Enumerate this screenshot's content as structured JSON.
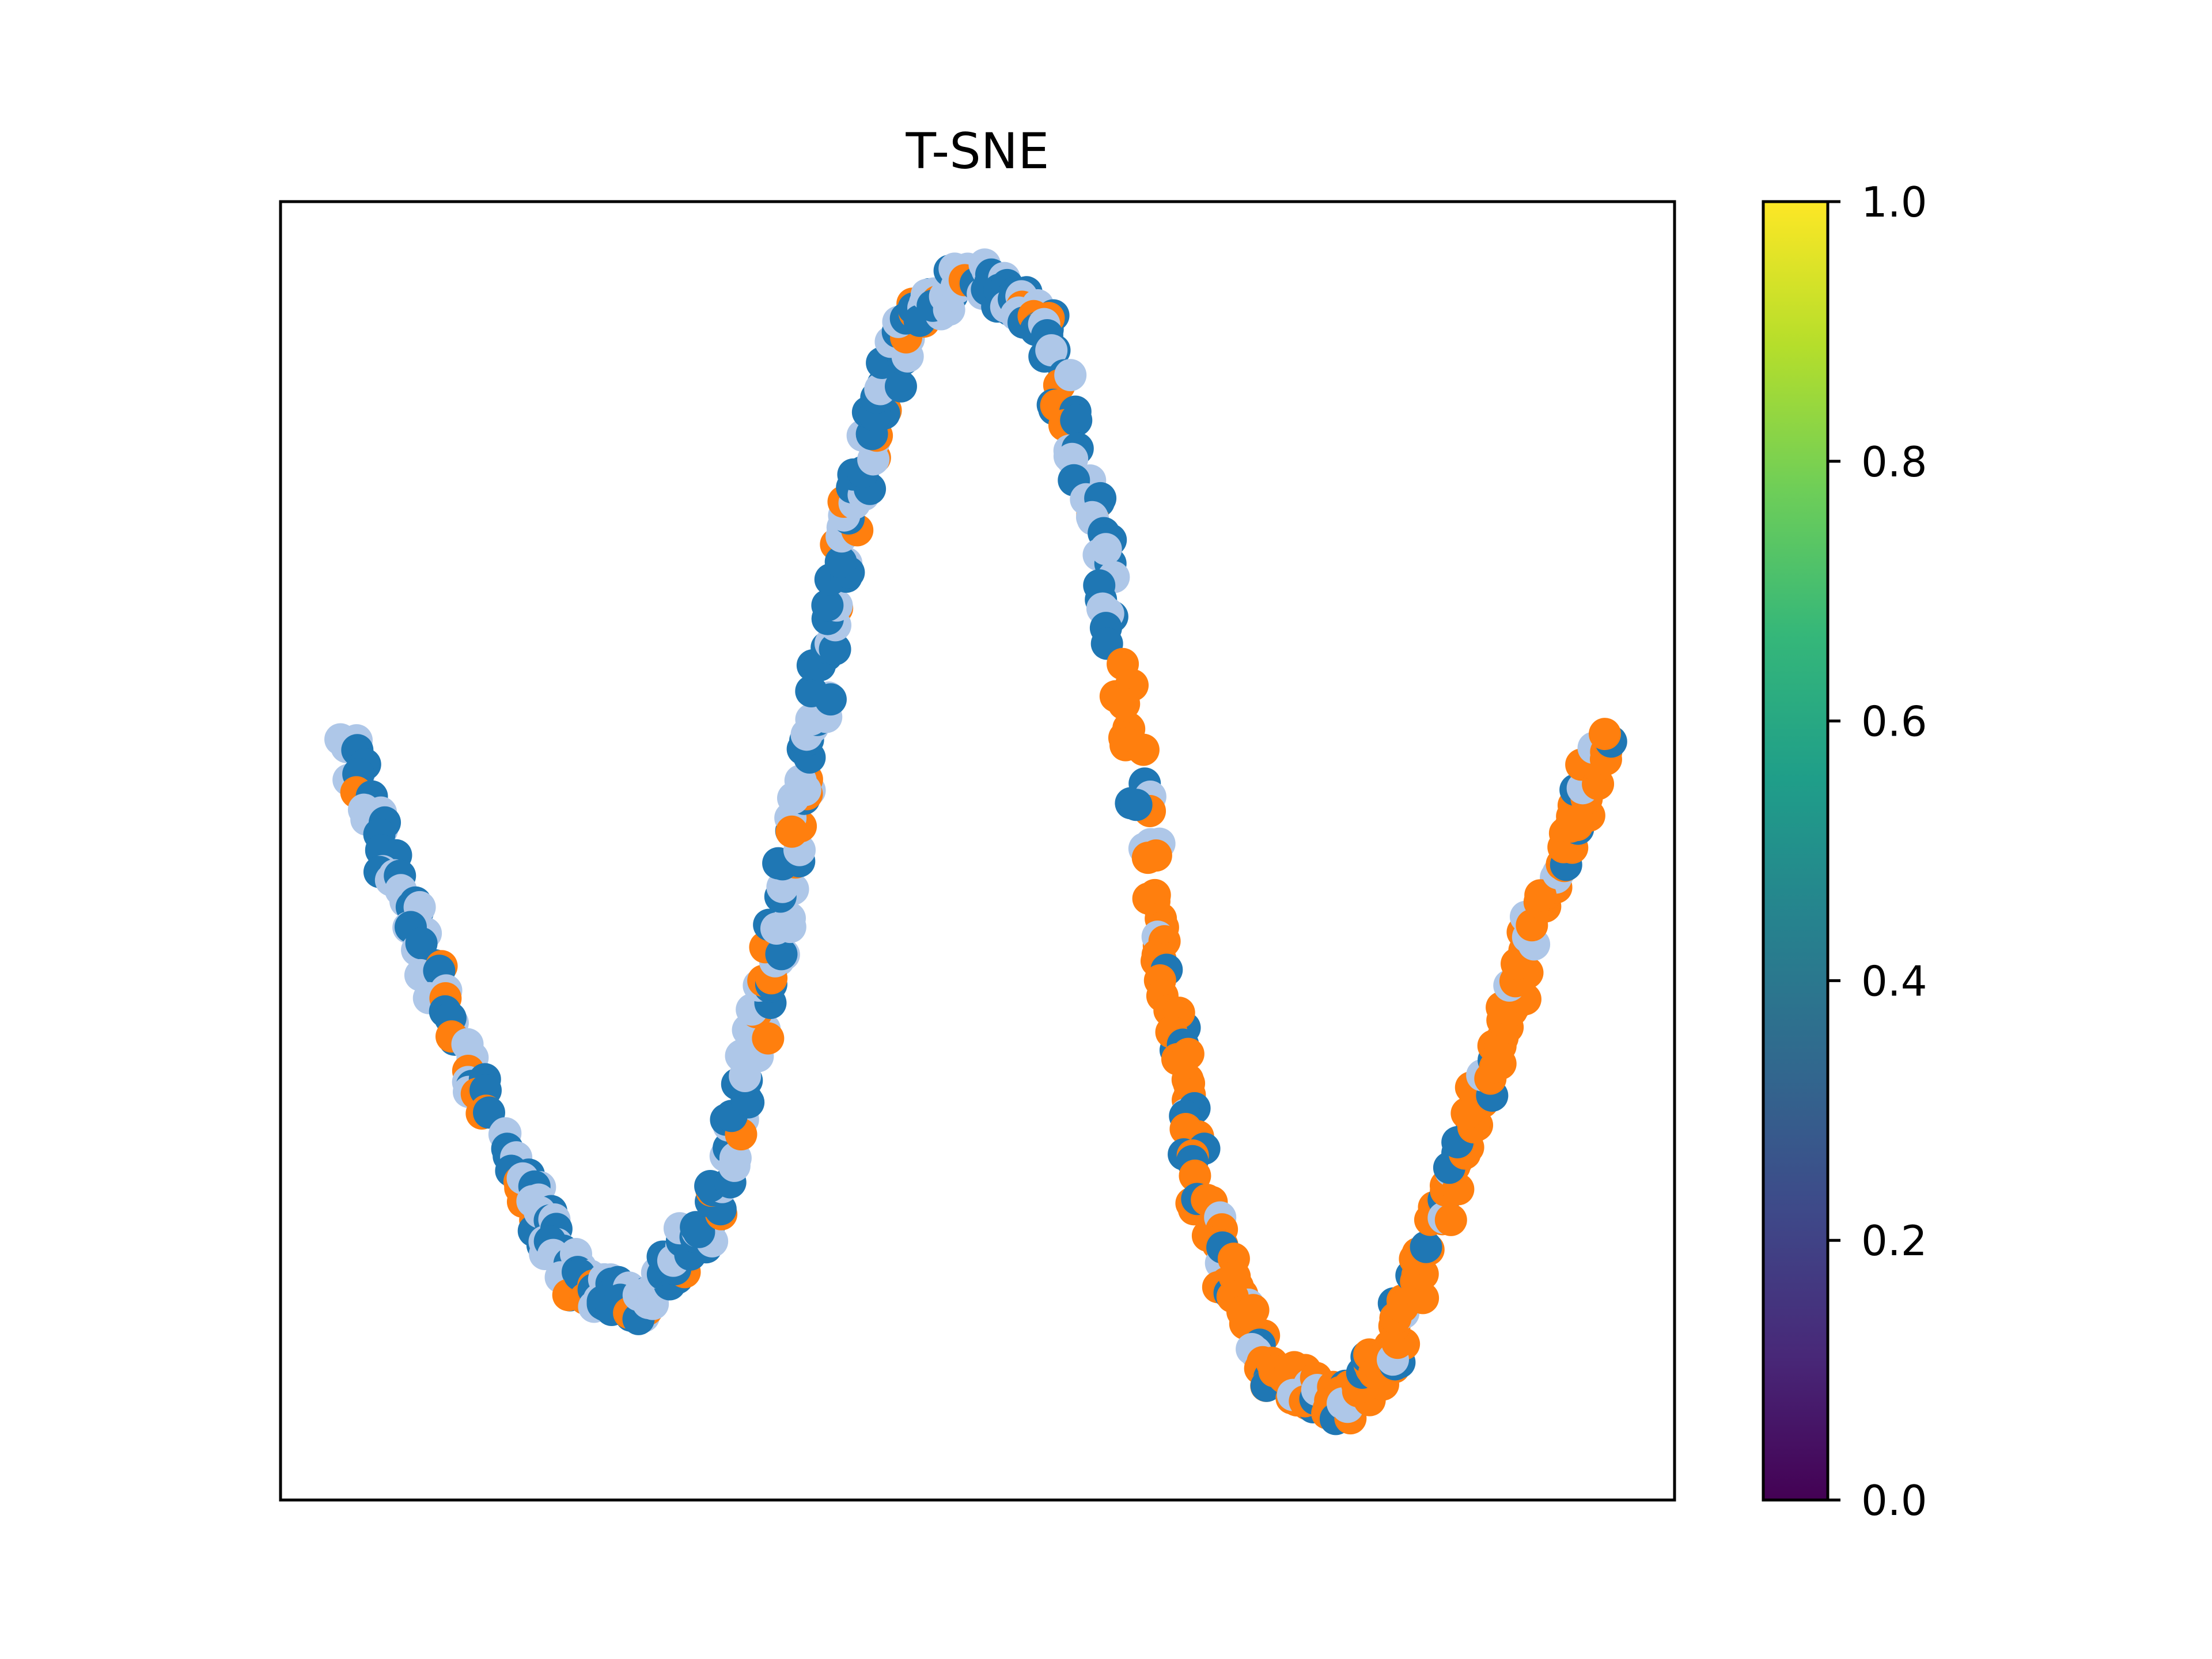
{
  "chart_data": {
    "type": "scatter",
    "title": "T-SNE",
    "xlabel": "",
    "ylabel": "",
    "x_ticks_visible": false,
    "y_ticks_visible": false,
    "xlim": [
      0,
      100
    ],
    "ylim": [
      0,
      100
    ],
    "grid": false,
    "legend": "none",
    "series_style": {
      "dark_blue": "#1f77b4",
      "light_blue": "#aec7e8",
      "orange": "#ff7f0e"
    },
    "colorbar": {
      "colormap": "viridis",
      "range": [
        0.0,
        1.0
      ],
      "ticks": [
        "0.0",
        "0.2",
        "0.4",
        "0.6",
        "0.8",
        "1.0"
      ],
      "stops": [
        "#440154",
        "#482878",
        "#3e4989",
        "#31688e",
        "#26828e",
        "#1f9e89",
        "#35b779",
        "#6ece58",
        "#b5de2b",
        "#fde725"
      ]
    },
    "curve": {
      "description_free": true,
      "control_points": [
        {
          "x": 4.5,
          "y": 58.5
        },
        {
          "x": 10,
          "y": 43
        },
        {
          "x": 17,
          "y": 25
        },
        {
          "x": 21,
          "y": 17
        },
        {
          "x": 26,
          "y": 15
        },
        {
          "x": 31,
          "y": 22
        },
        {
          "x": 35,
          "y": 40
        },
        {
          "x": 38,
          "y": 58
        },
        {
          "x": 41,
          "y": 76
        },
        {
          "x": 45,
          "y": 91
        },
        {
          "x": 50,
          "y": 94.5
        },
        {
          "x": 55,
          "y": 90
        },
        {
          "x": 59,
          "y": 73
        },
        {
          "x": 63,
          "y": 45
        },
        {
          "x": 66,
          "y": 23
        },
        {
          "x": 71,
          "y": 10
        },
        {
          "x": 76,
          "y": 7
        },
        {
          "x": 80,
          "y": 12
        },
        {
          "x": 85,
          "y": 28
        },
        {
          "x": 90,
          "y": 44
        },
        {
          "x": 95,
          "y": 59
        }
      ],
      "class_segments": [
        {
          "x_from": 0,
          "x_to": 60,
          "mix": [
            "dark_blue",
            "light_blue",
            "orange"
          ]
        },
        {
          "x_from": 60,
          "x_to": 100,
          "mix": [
            "orange",
            "dark_blue",
            "light_blue"
          ]
        }
      ]
    }
  }
}
